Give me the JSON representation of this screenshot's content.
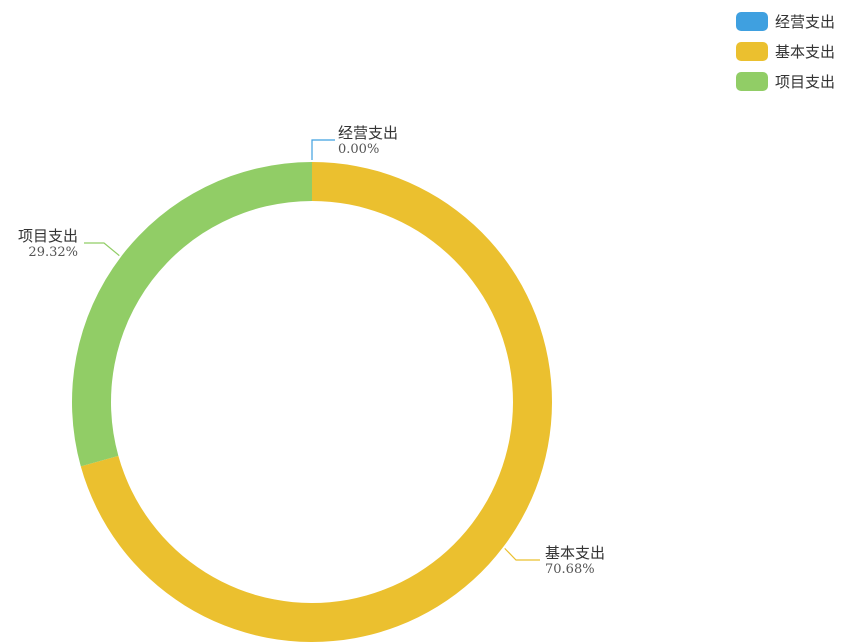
{
  "chart_data": {
    "type": "pie",
    "variant": "donut",
    "legend_position": "top-right",
    "slices": [
      {
        "name": "经营支出",
        "value": 0.0,
        "label": "0.00%",
        "color": "#3FA0E0"
      },
      {
        "name": "基本支出",
        "value": 70.68,
        "label": "70.68%",
        "color": "#EBC02F"
      },
      {
        "name": "项目支出",
        "value": 29.32,
        "label": "29.32%",
        "color": "#91CD66"
      }
    ]
  }
}
